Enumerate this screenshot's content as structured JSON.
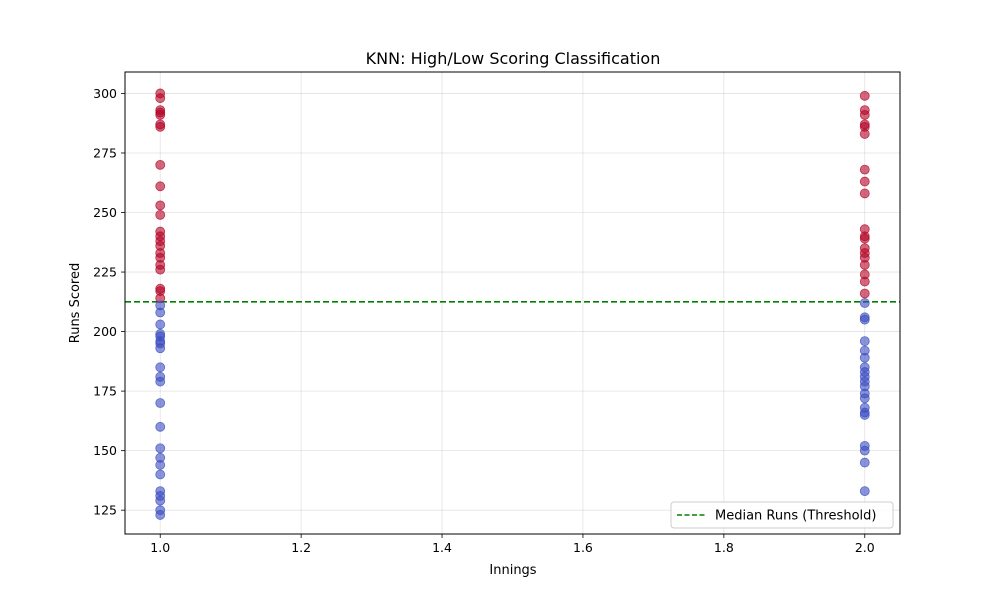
{
  "chart_data": {
    "type": "scatter",
    "title": "KNN: High/Low Scoring Classification",
    "xlabel": "Innings",
    "ylabel": "Runs Scored",
    "xlim": [
      0.95,
      2.05
    ],
    "ylim": [
      115,
      309
    ],
    "x_ticks": [
      "1.0",
      "1.2",
      "1.4",
      "1.6",
      "1.8",
      "2.0"
    ],
    "y_ticks": [
      "125",
      "150",
      "175",
      "200",
      "225",
      "250",
      "275",
      "300"
    ],
    "grid": true,
    "legend_position": "bottom-right",
    "threshold": {
      "label": "Median Runs (Threshold)",
      "value": 212.5,
      "color": "#008000"
    },
    "colors": {
      "high": "#b40426",
      "low": "#3b4cc0"
    },
    "series": [
      {
        "class": "high",
        "points": [
          {
            "x": 1,
            "y": 300
          },
          {
            "x": 1,
            "y": 298
          },
          {
            "x": 1,
            "y": 293
          },
          {
            "x": 1,
            "y": 292
          },
          {
            "x": 1,
            "y": 291
          },
          {
            "x": 1,
            "y": 287
          },
          {
            "x": 1,
            "y": 286
          },
          {
            "x": 1,
            "y": 270
          },
          {
            "x": 1,
            "y": 261
          },
          {
            "x": 1,
            "y": 253
          },
          {
            "x": 1,
            "y": 249
          },
          {
            "x": 1,
            "y": 242
          },
          {
            "x": 1,
            "y": 240
          },
          {
            "x": 1,
            "y": 238
          },
          {
            "x": 1,
            "y": 236
          },
          {
            "x": 1,
            "y": 233
          },
          {
            "x": 1,
            "y": 231
          },
          {
            "x": 1,
            "y": 228
          },
          {
            "x": 1,
            "y": 226
          },
          {
            "x": 1,
            "y": 218
          },
          {
            "x": 1,
            "y": 217
          },
          {
            "x": 1,
            "y": 214
          },
          {
            "x": 2,
            "y": 299
          },
          {
            "x": 2,
            "y": 293
          },
          {
            "x": 2,
            "y": 291
          },
          {
            "x": 2,
            "y": 287
          },
          {
            "x": 2,
            "y": 286
          },
          {
            "x": 2,
            "y": 283
          },
          {
            "x": 2,
            "y": 268
          },
          {
            "x": 2,
            "y": 263
          },
          {
            "x": 2,
            "y": 258
          },
          {
            "x": 2,
            "y": 243
          },
          {
            "x": 2,
            "y": 240
          },
          {
            "x": 2,
            "y": 239
          },
          {
            "x": 2,
            "y": 235
          },
          {
            "x": 2,
            "y": 233
          },
          {
            "x": 2,
            "y": 231
          },
          {
            "x": 2,
            "y": 228
          },
          {
            "x": 2,
            "y": 224
          },
          {
            "x": 2,
            "y": 221
          },
          {
            "x": 2,
            "y": 216
          }
        ]
      },
      {
        "class": "low",
        "points": [
          {
            "x": 1,
            "y": 211
          },
          {
            "x": 1,
            "y": 208
          },
          {
            "x": 1,
            "y": 203
          },
          {
            "x": 1,
            "y": 199
          },
          {
            "x": 1,
            "y": 198
          },
          {
            "x": 1,
            "y": 196
          },
          {
            "x": 1,
            "y": 195
          },
          {
            "x": 1,
            "y": 193
          },
          {
            "x": 1,
            "y": 185
          },
          {
            "x": 1,
            "y": 181
          },
          {
            "x": 1,
            "y": 179
          },
          {
            "x": 1,
            "y": 170
          },
          {
            "x": 1,
            "y": 160
          },
          {
            "x": 1,
            "y": 151
          },
          {
            "x": 1,
            "y": 147
          },
          {
            "x": 1,
            "y": 144
          },
          {
            "x": 1,
            "y": 140
          },
          {
            "x": 1,
            "y": 133
          },
          {
            "x": 1,
            "y": 131
          },
          {
            "x": 1,
            "y": 129
          },
          {
            "x": 1,
            "y": 125
          },
          {
            "x": 1,
            "y": 123
          },
          {
            "x": 2,
            "y": 212
          },
          {
            "x": 2,
            "y": 206
          },
          {
            "x": 2,
            "y": 205
          },
          {
            "x": 2,
            "y": 196
          },
          {
            "x": 2,
            "y": 192
          },
          {
            "x": 2,
            "y": 189
          },
          {
            "x": 2,
            "y": 185
          },
          {
            "x": 2,
            "y": 183
          },
          {
            "x": 2,
            "y": 181
          },
          {
            "x": 2,
            "y": 179
          },
          {
            "x": 2,
            "y": 177
          },
          {
            "x": 2,
            "y": 174
          },
          {
            "x": 2,
            "y": 172
          },
          {
            "x": 2,
            "y": 168
          },
          {
            "x": 2,
            "y": 166
          },
          {
            "x": 2,
            "y": 165
          },
          {
            "x": 2,
            "y": 152
          },
          {
            "x": 2,
            "y": 150
          },
          {
            "x": 2,
            "y": 145
          },
          {
            "x": 2,
            "y": 133
          }
        ]
      }
    ]
  }
}
